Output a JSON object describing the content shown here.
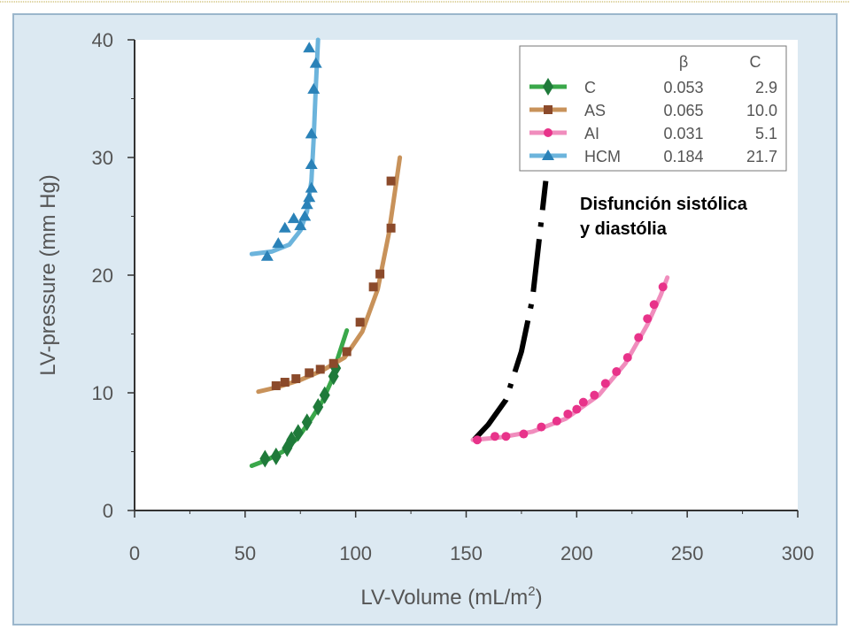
{
  "chart_data": {
    "type": "scatter",
    "xlabel": "LV-Volume (mL/m",
    "xlabel_superscript": "2",
    "xlabel_suffix": ")",
    "ylabel": "LV-pressure (mm Hg)",
    "xlim": [
      0,
      300
    ],
    "ylim": [
      0,
      40
    ],
    "x_ticks": [
      "0",
      "50",
      "100",
      "150",
      "200",
      "250",
      "300"
    ],
    "y_ticks": [
      "0",
      "10",
      "20",
      "30",
      "40"
    ],
    "grid": false,
    "legend_position": "top-right",
    "legend_header": {
      "beta": "β",
      "c": "C"
    },
    "series": [
      {
        "name": "C",
        "beta": "0.053",
        "c": "2.9",
        "color": "#1f7a3a",
        "line_color": "#3aa84a",
        "marker": "diamond",
        "points": [
          [
            59,
            4.4
          ],
          [
            64,
            4.6
          ],
          [
            69,
            5.3
          ],
          [
            71,
            6.0
          ],
          [
            74,
            6.6
          ],
          [
            78,
            7.5
          ],
          [
            83,
            8.8
          ],
          [
            86,
            9.8
          ],
          [
            90,
            11.4
          ],
          [
            91,
            12.1
          ]
        ],
        "fit_curve": [
          [
            53,
            3.8
          ],
          [
            60,
            4.3
          ],
          [
            67,
            5.0
          ],
          [
            74,
            6.2
          ],
          [
            80,
            7.8
          ],
          [
            85,
            9.3
          ],
          [
            89,
            11.0
          ],
          [
            92,
            13.0
          ],
          [
            96,
            15.3
          ]
        ]
      },
      {
        "name": "AS",
        "beta": "0.065",
        "c": "10.0",
        "color": "#8b4a2b",
        "line_color": "#c8925a",
        "marker": "square",
        "points": [
          [
            64,
            10.6
          ],
          [
            68,
            10.9
          ],
          [
            73,
            11.2
          ],
          [
            79,
            11.7
          ],
          [
            84,
            12.0
          ],
          [
            90,
            12.5
          ],
          [
            96,
            13.5
          ],
          [
            102,
            16.0
          ],
          [
            108,
            19.0
          ],
          [
            111,
            20.1
          ],
          [
            116,
            24.0
          ],
          [
            116,
            28.0
          ]
        ],
        "fit_curve": [
          [
            56,
            10.1
          ],
          [
            65,
            10.5
          ],
          [
            75,
            11.1
          ],
          [
            85,
            11.9
          ],
          [
            95,
            13.0
          ],
          [
            103,
            15.2
          ],
          [
            110,
            18.8
          ],
          [
            115,
            23.5
          ],
          [
            120,
            30.0
          ]
        ]
      },
      {
        "name": "AI",
        "beta": "0.031",
        "c": "5.1",
        "color": "#e8338a",
        "line_color": "#f08dbd",
        "marker": "circle",
        "points": [
          [
            155,
            6.0
          ],
          [
            163,
            6.3
          ],
          [
            168,
            6.3
          ],
          [
            176,
            6.5
          ],
          [
            184,
            7.1
          ],
          [
            191,
            7.6
          ],
          [
            196,
            8.2
          ],
          [
            200,
            8.6
          ],
          [
            203,
            9.2
          ],
          [
            208,
            9.8
          ],
          [
            213,
            10.8
          ],
          [
            218,
            11.8
          ],
          [
            223,
            13.0
          ],
          [
            228,
            14.7
          ],
          [
            232,
            16.3
          ],
          [
            235,
            17.5
          ],
          [
            239,
            19.0
          ]
        ],
        "fit_curve": [
          [
            153,
            6.0
          ],
          [
            165,
            6.2
          ],
          [
            180,
            6.7
          ],
          [
            195,
            7.8
          ],
          [
            210,
            9.8
          ],
          [
            222,
            12.5
          ],
          [
            232,
            15.8
          ],
          [
            238,
            18.3
          ],
          [
            241,
            19.8
          ]
        ]
      },
      {
        "name": "HCM",
        "beta": "0.184",
        "c": "21.7",
        "color": "#2a82b8",
        "line_color": "#6cb4dc",
        "marker": "triangle",
        "points": [
          [
            60,
            21.6
          ],
          [
            65,
            22.7
          ],
          [
            68,
            24.0
          ],
          [
            72,
            24.8
          ],
          [
            75,
            24.2
          ],
          [
            77,
            25.0
          ],
          [
            78,
            26.0
          ],
          [
            79,
            26.6
          ],
          [
            80,
            27.4
          ],
          [
            80,
            29.4
          ],
          [
            80,
            32.0
          ],
          [
            81,
            35.8
          ],
          [
            82,
            38.0
          ],
          [
            79,
            39.3
          ]
        ],
        "fit_curve": [
          [
            53,
            21.8
          ],
          [
            62,
            22.0
          ],
          [
            70,
            22.6
          ],
          [
            75,
            23.8
          ],
          [
            78,
            25.4
          ],
          [
            80,
            28.0
          ],
          [
            81,
            31.5
          ],
          [
            82,
            36.0
          ],
          [
            83,
            40.0
          ]
        ]
      }
    ],
    "annotation": {
      "lines": [
        "Disfunción sistólica",
        "y diastólia"
      ],
      "curve": [
        [
          153,
          5.9
        ],
        [
          160,
          7.3
        ],
        [
          168,
          9.4
        ],
        [
          175,
          13.5
        ],
        [
          180,
          18.0
        ],
        [
          183,
          23.0
        ],
        [
          186,
          28.0
        ]
      ]
    }
  },
  "colors": {
    "slide_background": "#dce9f2",
    "plot_background": "#ffffff",
    "axis": "#333333",
    "slide_border": "#9bb6cc",
    "top_rule": "#b9a43b",
    "annotation_line": "#000000"
  }
}
